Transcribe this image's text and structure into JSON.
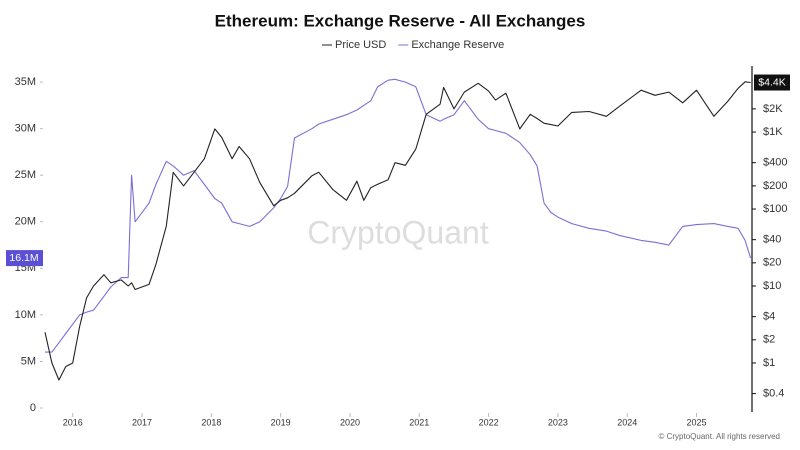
{
  "chart_data": {
    "type": "line",
    "title": "Ethereum: Exchange Reserve - All Exchanges",
    "watermark": "CryptoQuant",
    "footnote": "© CryptoQuant. All rights reserved",
    "x": [
      2015.6,
      2015.7,
      2015.8,
      2015.9,
      2016.0,
      2016.1,
      2016.2,
      2016.3,
      2016.45,
      2016.55,
      2016.7,
      2016.8,
      2016.85,
      2016.9,
      2017.1,
      2017.2,
      2017.35,
      2017.45,
      2017.6,
      2017.75,
      2017.9,
      2018.05,
      2018.15,
      2018.3,
      2018.4,
      2018.55,
      2018.7,
      2018.9,
      2019.0,
      2019.1,
      2019.2,
      2019.45,
      2019.55,
      2019.75,
      2019.95,
      2020.1,
      2020.2,
      2020.3,
      2020.4,
      2020.55,
      2020.65,
      2020.8,
      2020.95,
      2021.1,
      2021.3,
      2021.35,
      2021.5,
      2021.65,
      2021.85,
      2022.0,
      2022.1,
      2022.25,
      2022.45,
      2022.6,
      2022.7,
      2022.8,
      2022.9,
      2023.0,
      2023.2,
      2023.45,
      2023.7,
      2023.9,
      2024.2,
      2024.4,
      2024.6,
      2024.8,
      2025.0,
      2025.25,
      2025.45,
      2025.6,
      2025.7,
      2025.78
    ],
    "series": [
      {
        "name": "Price USD",
        "color": "#222222",
        "axis": "y2",
        "values": [
          2.5,
          1.0,
          0.6,
          0.9,
          1.0,
          3,
          7,
          10,
          14,
          11,
          12,
          10,
          11,
          9,
          10.5,
          19,
          60,
          300,
          200,
          300,
          450,
          1100,
          850,
          450,
          650,
          450,
          220,
          110,
          130,
          140,
          160,
          270,
          300,
          180,
          130,
          230,
          130,
          190,
          210,
          240,
          400,
          370,
          600,
          1700,
          2300,
          3800,
          2000,
          3300,
          4300,
          3400,
          2600,
          3200,
          1100,
          1700,
          1500,
          1300,
          1250,
          1200,
          1800,
          1850,
          1600,
          2200,
          3500,
          3000,
          3300,
          2400,
          3500,
          1600,
          2500,
          3700,
          4500,
          4400
        ]
      },
      {
        "name": "Exchange Reserve",
        "color": "#7b6fd6",
        "values": [
          6000000,
          6000000,
          7000000,
          8000000,
          9000000,
          10000000,
          10300000,
          10500000,
          12000000,
          13000000,
          14000000,
          14000000,
          25000000,
          20000000,
          22000000,
          24000000,
          26500000,
          26000000,
          25000000,
          25500000,
          24000000,
          22500000,
          22000000,
          20000000,
          19800000,
          19500000,
          20000000,
          21500000,
          22500000,
          23800000,
          29000000,
          30000000,
          30500000,
          31000000,
          31500000,
          32000000,
          32500000,
          33000000,
          34500000,
          35200000,
          35300000,
          35000000,
          34500000,
          31500000,
          30800000,
          31000000,
          31500000,
          33000000,
          31000000,
          30000000,
          29800000,
          29500000,
          28500000,
          27200000,
          26000000,
          22000000,
          21000000,
          20500000,
          19800000,
          19300000,
          19000000,
          18500000,
          18000000,
          17800000,
          17500000,
          19500000,
          19700000,
          19800000,
          19500000,
          19300000,
          18000000,
          16100000
        ]
      }
    ],
    "xlim": [
      2015.6,
      2025.8
    ],
    "xticks": [
      2016,
      2017,
      2018,
      2019,
      2020,
      2021,
      2022,
      2023,
      2024,
      2025
    ],
    "ylim": [
      0,
      36300000
    ],
    "yticks": [
      {
        "value": 0,
        "label": "0"
      },
      {
        "value": 5000000,
        "label": "5M"
      },
      {
        "value": 10000000,
        "label": "10M"
      },
      {
        "value": 15000000,
        "label": "15M"
      },
      {
        "value": 20000000,
        "label": "20M"
      },
      {
        "value": 25000000,
        "label": "25M"
      },
      {
        "value": 30000000,
        "label": "30M"
      },
      {
        "value": 35000000,
        "label": "35M"
      }
    ],
    "y2lim": [
      0.26,
      6400
    ],
    "y2log": true,
    "y2ticks": [
      {
        "value": 0.4,
        "label": "$0.4"
      },
      {
        "value": 1,
        "label": "$1"
      },
      {
        "value": 2,
        "label": "$2"
      },
      {
        "value": 4,
        "label": "$4"
      },
      {
        "value": 10,
        "label": "$10"
      },
      {
        "value": 20,
        "label": "$20"
      },
      {
        "value": 40,
        "label": "$40"
      },
      {
        "value": 100,
        "label": "$100"
      },
      {
        "value": 200,
        "label": "$200"
      },
      {
        "value": 400,
        "label": "$400"
      },
      {
        "value": 1000,
        "label": "$1K"
      },
      {
        "value": 2000,
        "label": "$2K"
      }
    ],
    "annotations": [
      {
        "text": "16.1M",
        "value": 16100000,
        "axis": "y",
        "color": "#5b4fd6"
      },
      {
        "text": "$4.4K",
        "value": 4400,
        "axis": "y2",
        "color": "#111111"
      }
    ],
    "grid": false
  }
}
